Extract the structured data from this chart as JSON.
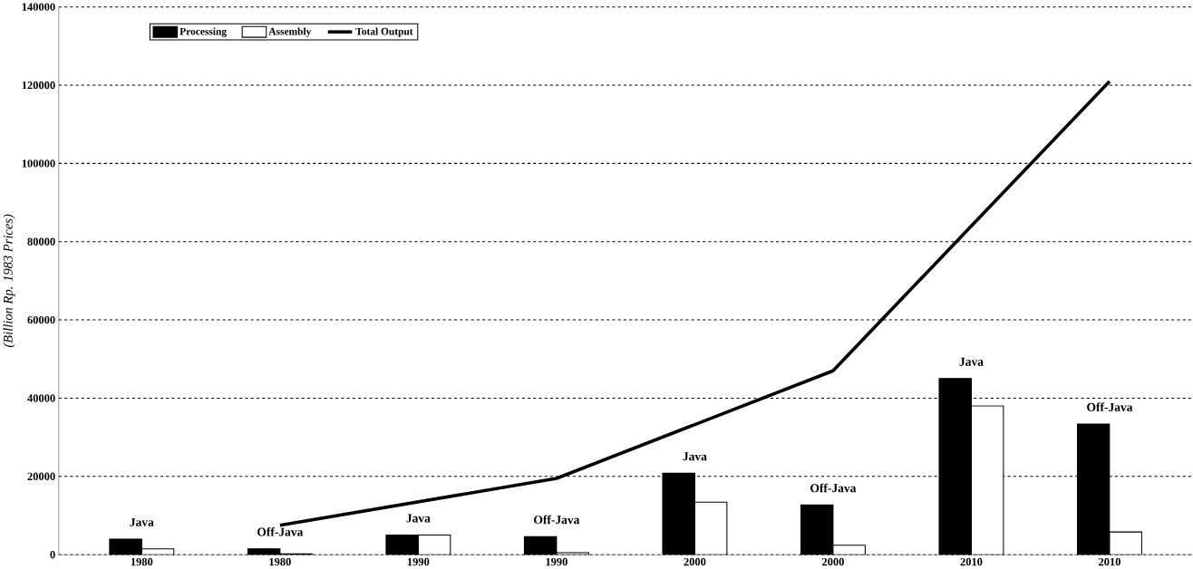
{
  "chart_data": {
    "type": "bar",
    "ylabel": "(Billion Rp. 1983 Prices)",
    "categories": [
      "1980",
      "1980",
      "1990",
      "1990",
      "2000",
      "2000",
      "2010",
      "2010"
    ],
    "series": [
      {
        "name": "Processing",
        "color": "#000000",
        "values": [
          4000,
          1500,
          5000,
          4600,
          20800,
          12700,
          45000,
          33400
        ]
      },
      {
        "name": "Assembly",
        "color": "#ffffff",
        "values": [
          1500,
          200,
          5000,
          500,
          13400,
          2400,
          38000,
          5800
        ]
      },
      {
        "name": "Total Output",
        "type": "line",
        "color": "#000000",
        "values": [
          null,
          7500,
          null,
          19500,
          null,
          47000,
          null,
          121000
        ]
      }
    ],
    "annotations": [
      "Java",
      "Off-Java",
      "Java",
      "Off-Java",
      "Java",
      "Off-Java",
      "Java",
      "Off-Java"
    ],
    "ylim": [
      0,
      140000
    ],
    "yticks": [
      0,
      20000,
      40000,
      60000,
      80000,
      100000,
      120000,
      140000
    ],
    "grid": "y",
    "legend": "top left"
  }
}
